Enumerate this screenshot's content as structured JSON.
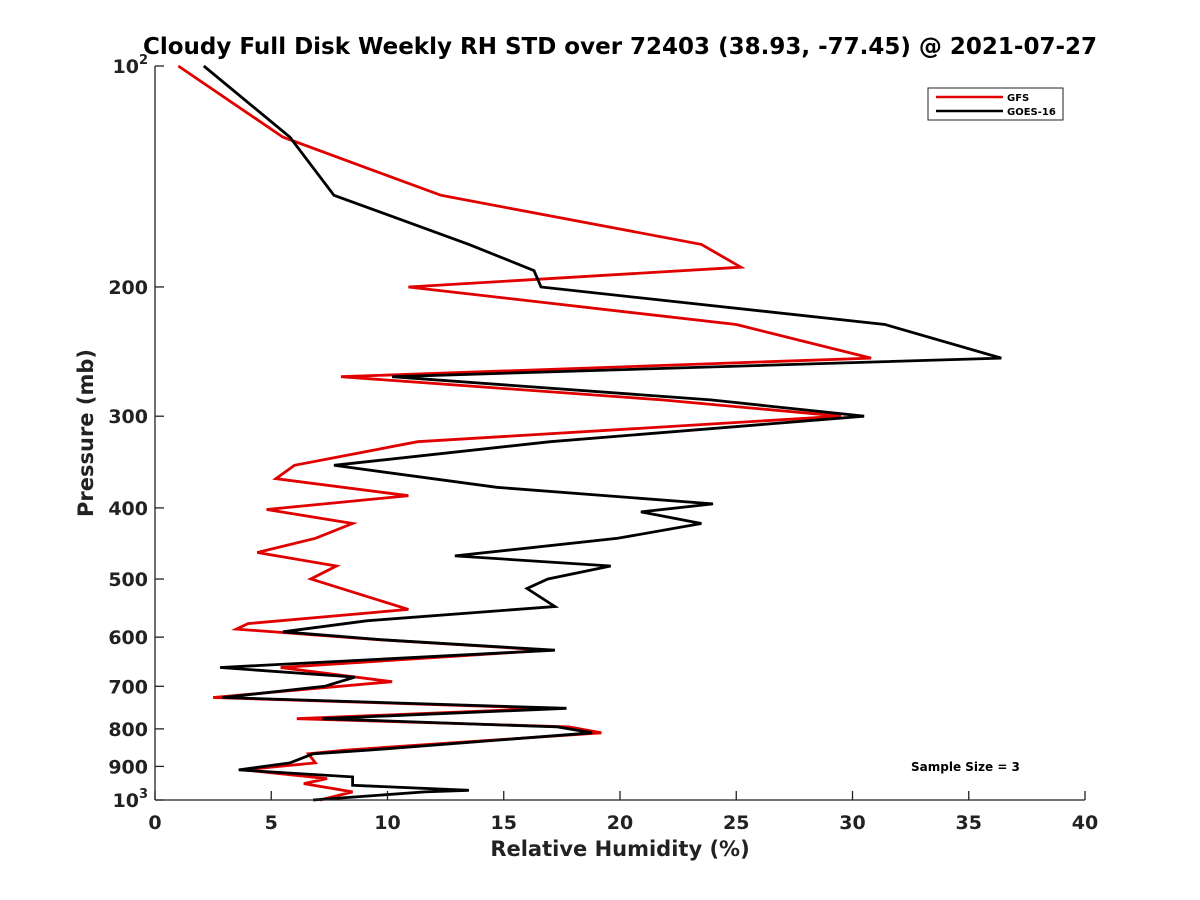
{
  "chart_data": {
    "type": "line",
    "title": "Cloudy Full Disk Weekly RH STD over 72403 (38.93, -77.45) @ 2021-07-27",
    "xlabel": "Relative Humidity (%)",
    "ylabel": "Pressure (mb)",
    "xlim": [
      0,
      40
    ],
    "ylim": [
      100,
      1000
    ],
    "y_scale": "log",
    "y_reversed": true,
    "x_ticks": [
      0,
      5,
      10,
      15,
      20,
      25,
      30,
      35,
      40
    ],
    "x_tick_labels": [
      "0",
      "5",
      "10",
      "15",
      "20",
      "25",
      "30",
      "35",
      "40"
    ],
    "y_ticks": [
      100,
      200,
      300,
      400,
      500,
      600,
      700,
      800,
      900,
      1000
    ],
    "y_tick_labels": [
      "",
      "200",
      "300",
      "400",
      "500",
      "600",
      "700",
      "800",
      "900",
      ""
    ],
    "y_tick_power_labels": [
      {
        "value": 100,
        "base": "10",
        "exponent": "2"
      },
      {
        "value": 1000,
        "base": "10",
        "exponent": "3"
      }
    ],
    "grid": false,
    "legend_position": "top-right",
    "annotation": "Sample Size = 3",
    "series": [
      {
        "name": "GFS",
        "color": "#e00000",
        "points": [
          [
            1.0,
            100
          ],
          [
            5.5,
            125
          ],
          [
            12.3,
            150
          ],
          [
            23.5,
            175
          ],
          [
            25.2,
            188
          ],
          [
            10.9,
            200
          ],
          [
            25.0,
            225
          ],
          [
            30.8,
            250
          ],
          [
            8.0,
            265
          ],
          [
            21.8,
            285
          ],
          [
            29.5,
            300
          ],
          [
            11.3,
            325
          ],
          [
            6.0,
            350
          ],
          [
            5.2,
            365
          ],
          [
            10.9,
            385
          ],
          [
            4.8,
            402
          ],
          [
            8.5,
            420
          ],
          [
            6.9,
            440
          ],
          [
            4.4,
            460
          ],
          [
            7.8,
            480
          ],
          [
            6.7,
            500
          ],
          [
            10.9,
            550
          ],
          [
            4.0,
            575
          ],
          [
            3.5,
            585
          ],
          [
            9.7,
            605
          ],
          [
            16.9,
            625
          ],
          [
            5.4,
            660
          ],
          [
            10.2,
            690
          ],
          [
            2.5,
            725
          ],
          [
            17.0,
            750
          ],
          [
            6.1,
            775
          ],
          [
            17.8,
            795
          ],
          [
            19.2,
            810
          ],
          [
            8.2,
            855
          ],
          [
            6.6,
            865
          ],
          [
            6.9,
            890
          ],
          [
            3.8,
            910
          ],
          [
            7.4,
            935
          ],
          [
            6.4,
            950
          ],
          [
            8.5,
            975
          ],
          [
            7.1,
            1000
          ]
        ]
      },
      {
        "name": "GOES-16",
        "color": "#000000",
        "points": [
          [
            2.1,
            100
          ],
          [
            5.8,
            125
          ],
          [
            7.7,
            150
          ],
          [
            13.5,
            175
          ],
          [
            16.3,
            190
          ],
          [
            16.6,
            200
          ],
          [
            31.4,
            225
          ],
          [
            36.4,
            250
          ],
          [
            10.2,
            265
          ],
          [
            23.9,
            285
          ],
          [
            30.5,
            300
          ],
          [
            17.0,
            325
          ],
          [
            7.7,
            350
          ],
          [
            14.7,
            375
          ],
          [
            24.0,
            395
          ],
          [
            20.9,
            405
          ],
          [
            23.5,
            420
          ],
          [
            19.9,
            440
          ],
          [
            12.9,
            465
          ],
          [
            19.6,
            480
          ],
          [
            16.9,
            500
          ],
          [
            16.0,
            515
          ],
          [
            17.2,
            545
          ],
          [
            9.1,
            570
          ],
          [
            5.5,
            590
          ],
          [
            9.8,
            605
          ],
          [
            17.2,
            625
          ],
          [
            2.8,
            660
          ],
          [
            8.6,
            680
          ],
          [
            7.3,
            700
          ],
          [
            2.9,
            725
          ],
          [
            17.7,
            750
          ],
          [
            7.2,
            775
          ],
          [
            17.3,
            795
          ],
          [
            18.8,
            810
          ],
          [
            9.2,
            855
          ],
          [
            6.8,
            865
          ],
          [
            5.8,
            890
          ],
          [
            3.6,
            910
          ],
          [
            8.5,
            930
          ],
          [
            8.5,
            955
          ],
          [
            13.5,
            970
          ],
          [
            11.6,
            975
          ],
          [
            6.8,
            1000
          ]
        ]
      }
    ]
  }
}
